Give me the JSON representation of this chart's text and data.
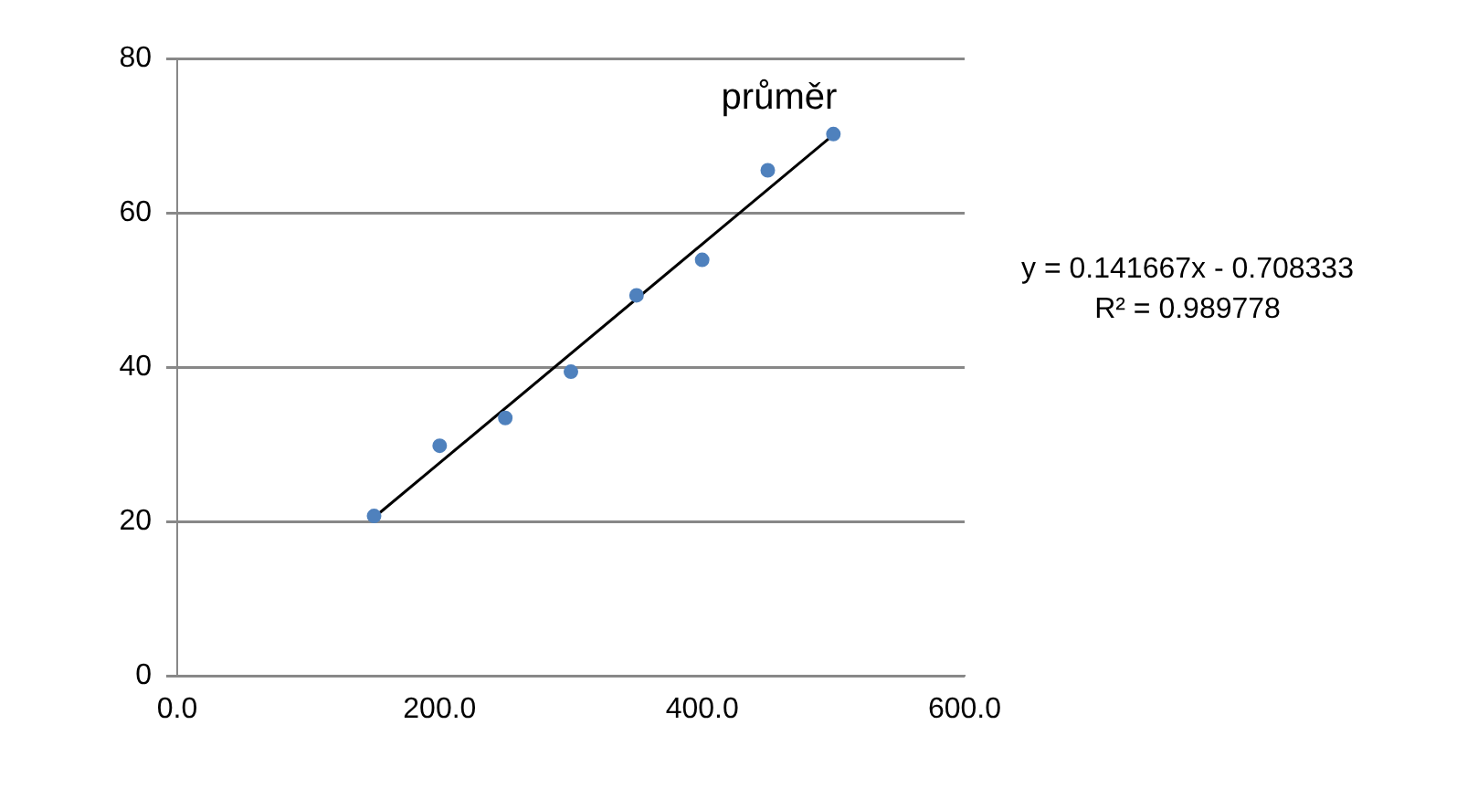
{
  "chart_data": {
    "type": "scatter",
    "x": [
      150,
      200,
      250,
      300,
      350,
      400,
      450,
      500
    ],
    "series": [
      {
        "name": "průměr",
        "marker": "circle",
        "color": "#4f81bd",
        "values": [
          20.7,
          29.8,
          33.4,
          39.4,
          49.3,
          53.9,
          65.5,
          70.2
        ]
      },
      {
        "type": "line",
        "color": "#000000",
        "x": [
          150,
          500
        ],
        "values": [
          20.5,
          70.1
        ]
      }
    ],
    "xlim": [
      0,
      600
    ],
    "xticks": [
      {
        "value": 0,
        "label": "0.0"
      },
      {
        "value": 200,
        "label": "200.0"
      },
      {
        "value": 400,
        "label": "400.0"
      },
      {
        "value": 600,
        "label": "600.0"
      }
    ],
    "ylim": [
      0,
      80
    ],
    "yticks": [
      0,
      20,
      40,
      60,
      80
    ],
    "grid": "y",
    "legend": false,
    "annotations": [
      "y = 0.141667x - 0.708333",
      "R² = 0.989778"
    ]
  }
}
